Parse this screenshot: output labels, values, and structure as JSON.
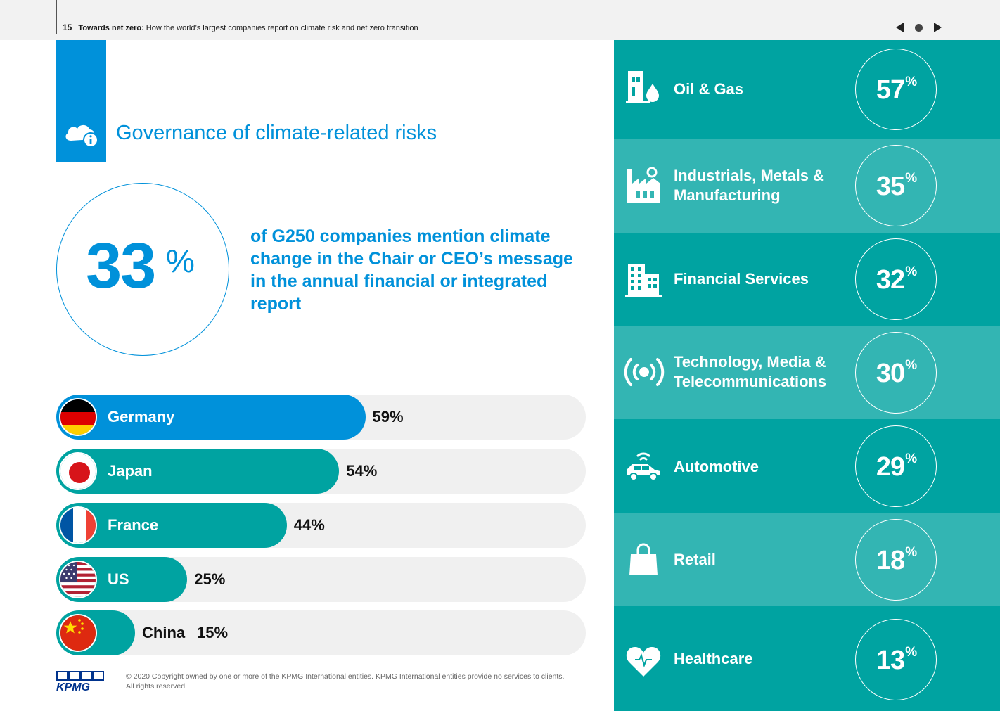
{
  "header": {
    "page_number": "15",
    "title": "Towards net zero:",
    "subtitle": "How the world’s largest companies report on climate risk and net zero transition",
    "nav": {
      "prev_icon": "triangle-left-icon",
      "home_icon": "dot-icon",
      "next_icon": "triangle-right-icon"
    }
  },
  "section": {
    "title": "Governance of climate-related risks",
    "icon": "cloud-info-icon"
  },
  "stat": {
    "value": "33",
    "unit": "%",
    "text": "of G250 companies mention climate change in the Chair or CEO’s message in the annual financial or integrated report"
  },
  "countries": [
    {
      "name": "Germany",
      "value": 59,
      "label": "59%",
      "color": "#0091da",
      "flag": "germany-flag-icon"
    },
    {
      "name": "Japan",
      "value": 54,
      "label": "54%",
      "color": "#00a3a1",
      "flag": "japan-flag-icon"
    },
    {
      "name": "France",
      "value": 44,
      "label": "44%",
      "color": "#00a3a1",
      "flag": "france-flag-icon"
    },
    {
      "name": "US",
      "value": 25,
      "label": "25%",
      "color": "#00a3a1",
      "flag": "us-flag-icon"
    },
    {
      "name": "China",
      "value": 15,
      "label": "15%",
      "color": "#00a3a1",
      "flag": "china-flag-icon"
    }
  ],
  "sectors": [
    {
      "name": "Oil & Gas",
      "value": "57",
      "unit": "%",
      "icon": "oil-gas-icon"
    },
    {
      "name": "Industrials, Metals & Manufacturing",
      "value": "35",
      "unit": "%",
      "icon": "factory-icon"
    },
    {
      "name": "Financial Services",
      "value": "32",
      "unit": "%",
      "icon": "office-building-icon"
    },
    {
      "name": "Technology, Media & Telecommunications",
      "value": "30",
      "unit": "%",
      "icon": "broadcast-icon"
    },
    {
      "name": "Automotive",
      "value": "29",
      "unit": "%",
      "icon": "connected-car-icon"
    },
    {
      "name": "Retail",
      "value": "18",
      "unit": "%",
      "icon": "shopping-bag-icon"
    },
    {
      "name": "Healthcare",
      "value": "13",
      "unit": "%",
      "icon": "heart-icon"
    }
  ],
  "footer": {
    "logo": "KPMG",
    "copyright": "© 2020 Copyright owned by one or more of the KPMG International entities. KPMG International entities provide no services to clients.  All rights reserved."
  },
  "colors": {
    "kpmg_blue": "#0091da",
    "teal_dark": "#00a3a1",
    "teal_light": "#33b5b3",
    "track_grey": "#f0f0f0",
    "logo_navy": "#00338d"
  }
}
